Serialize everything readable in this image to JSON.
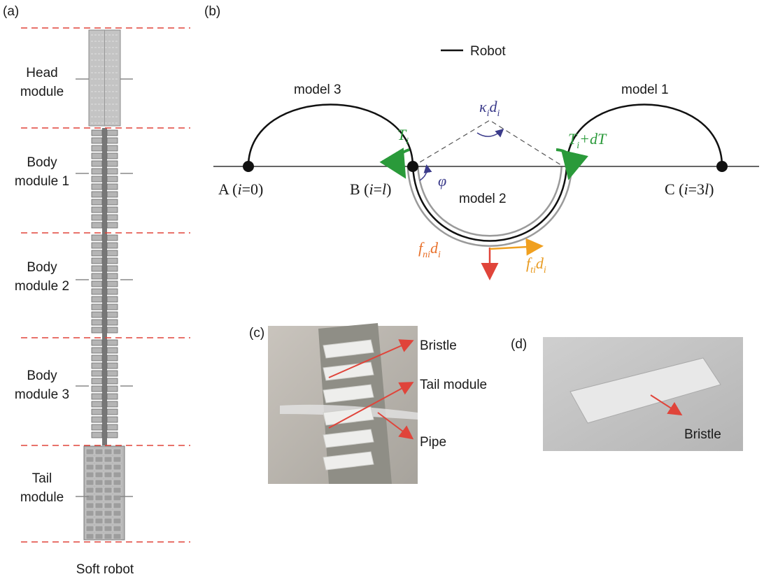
{
  "panels": {
    "a": "(a)",
    "b": "(b)",
    "c": "(c)",
    "d": "(d)"
  },
  "robot_modules": [
    {
      "lines": [
        "Head",
        "module"
      ]
    },
    {
      "lines": [
        "Body",
        "module 1"
      ]
    },
    {
      "lines": [
        "Body",
        "module 2"
      ]
    },
    {
      "lines": [
        "Body",
        "module 3"
      ]
    },
    {
      "lines": [
        "Tail",
        "module"
      ]
    }
  ],
  "robot_caption": "Soft robot",
  "legend": "Robot",
  "models": [
    "model 3",
    "model 2",
    "model 1"
  ],
  "points": [
    [
      "A (",
      "i",
      "=0)"
    ],
    [
      "B (",
      "i",
      "=",
      "l",
      ")"
    ],
    [
      "C (",
      "i",
      "=3",
      "l",
      ")"
    ]
  ],
  "forces": {
    "t_left": [
      "T",
      "i"
    ],
    "t_right": [
      "T",
      "i",
      "+dT"
    ],
    "curvature": [
      "κ",
      "i",
      "d",
      "i"
    ],
    "angle": "φ",
    "normal": [
      "f",
      "ni",
      "d",
      "i"
    ],
    "tangential": [
      "f",
      "ti",
      "d",
      "i"
    ]
  },
  "photo_c_labels": [
    "Bristle",
    "Tail module",
    "Pipe"
  ],
  "photo_d_label": "Bristle"
}
